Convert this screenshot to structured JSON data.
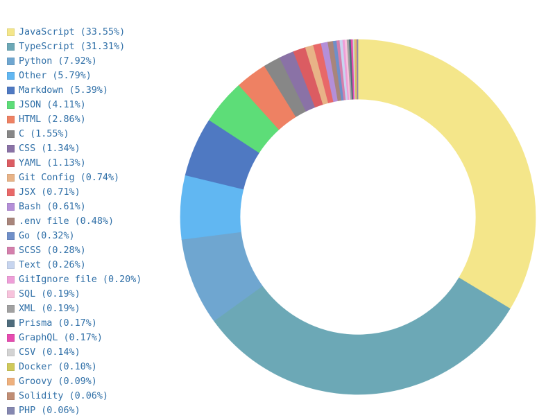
{
  "chart_data": {
    "type": "pie",
    "legend_position": "left",
    "series": [
      {
        "name": "JavaScript",
        "label": "JavaScript (33.55%)",
        "value": 33.55,
        "color": "#f4e68a"
      },
      {
        "name": "TypeScript",
        "label": "TypeScript (31.31%)",
        "value": 31.31,
        "color": "#6ca8b6"
      },
      {
        "name": "Python",
        "label": "Python (7.92%)",
        "value": 7.92,
        "color": "#6fa6d0"
      },
      {
        "name": "Other",
        "label": "Other (5.79%)",
        "value": 5.79,
        "color": "#61b7f2"
      },
      {
        "name": "Markdown",
        "label": "Markdown (5.39%)",
        "value": 5.39,
        "color": "#4f79c2"
      },
      {
        "name": "JSON",
        "label": "JSON (4.11%)",
        "value": 4.11,
        "color": "#5ddd78"
      },
      {
        "name": "HTML",
        "label": "HTML (2.86%)",
        "value": 2.86,
        "color": "#ee8163"
      },
      {
        "name": "C",
        "label": "C (1.55%)",
        "value": 1.55,
        "color": "#878787"
      },
      {
        "name": "CSS",
        "label": "CSS (1.34%)",
        "value": 1.34,
        "color": "#8a72a6"
      },
      {
        "name": "YAML",
        "label": "YAML (1.13%)",
        "value": 1.13,
        "color": "#db5c62"
      },
      {
        "name": "Git Config",
        "label": "Git Config (0.74%)",
        "value": 0.74,
        "color": "#e8b387"
      },
      {
        "name": "JSX",
        "label": "JSX (0.71%)",
        "value": 0.71,
        "color": "#e86868"
      },
      {
        "name": "Bash",
        "label": "Bash (0.61%)",
        "value": 0.61,
        "color": "#b48fd8"
      },
      {
        "name": ".env file",
        "label": ".env file (0.48%)",
        "value": 0.48,
        "color": "#a8857b"
      },
      {
        "name": "Go",
        "label": "Go (0.32%)",
        "value": 0.32,
        "color": "#6f8fc9"
      },
      {
        "name": "SCSS",
        "label": "SCSS (0.28%)",
        "value": 0.28,
        "color": "#d47fac"
      },
      {
        "name": "Text",
        "label": "Text (0.26%)",
        "value": 0.26,
        "color": "#c7d5ef"
      },
      {
        "name": "GitIgnore file",
        "label": "GitIgnore file (0.20%)",
        "value": 0.2,
        "color": "#ee9ed8"
      },
      {
        "name": "SQL",
        "label": "SQL (0.19%)",
        "value": 0.19,
        "color": "#f7c3dc"
      },
      {
        "name": "XML",
        "label": "XML (0.19%)",
        "value": 0.19,
        "color": "#a1a1a1"
      },
      {
        "name": "Prisma",
        "label": "Prisma (0.17%)",
        "value": 0.17,
        "color": "#4e6c7c"
      },
      {
        "name": "GraphQL",
        "label": "GraphQL (0.17%)",
        "value": 0.17,
        "color": "#e64bb0"
      },
      {
        "name": "CSV",
        "label": "CSV (0.14%)",
        "value": 0.14,
        "color": "#d3d3d3"
      },
      {
        "name": "Docker",
        "label": "Docker (0.10%)",
        "value": 0.1,
        "color": "#cfc95a"
      },
      {
        "name": "Groovy",
        "label": "Groovy (0.09%)",
        "value": 0.09,
        "color": "#eeb07d"
      },
      {
        "name": "Solidity",
        "label": "Solidity (0.06%)",
        "value": 0.06,
        "color": "#c08d74"
      },
      {
        "name": "PHP",
        "label": "PHP (0.06%)",
        "value": 0.06,
        "color": "#8587b0"
      }
    ]
  }
}
